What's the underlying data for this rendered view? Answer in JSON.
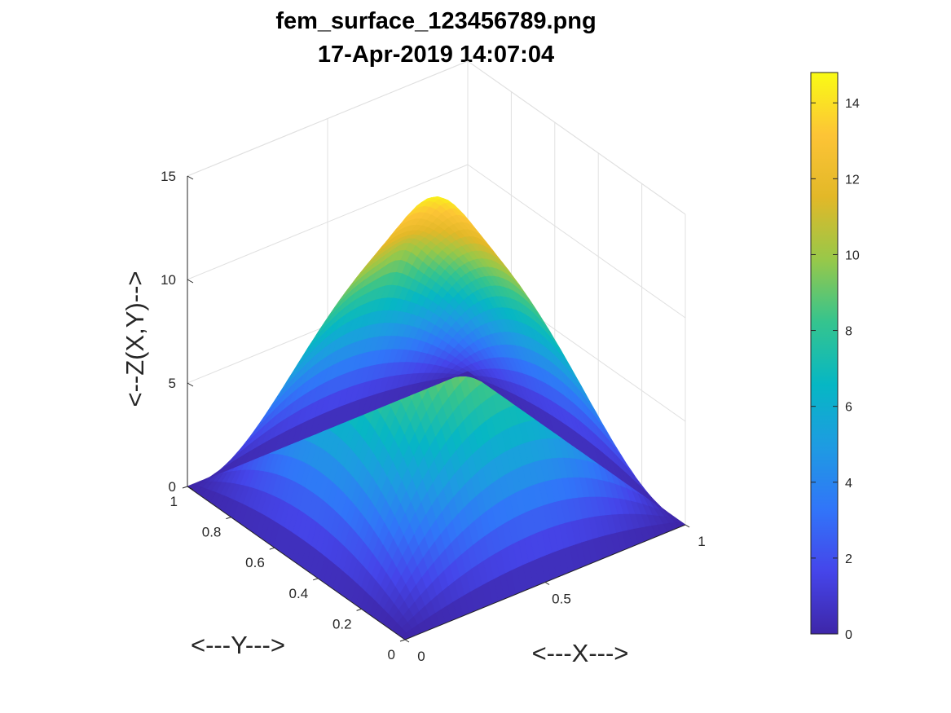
{
  "chart_data": {
    "type": "surface",
    "title": "fem_surface_123456789.png",
    "subtitle": "17-Apr-2019 14:07:04",
    "xlabel": "<---X--->",
    "ylabel": "<---Y--->",
    "zlabel": "<--Z(X,Y)-->",
    "xlim": [
      0,
      1
    ],
    "ylim": [
      0,
      1
    ],
    "zlim": [
      0,
      15
    ],
    "x_ticks": [
      {
        "value": 0,
        "label": "0"
      },
      {
        "value": 0.5,
        "label": "0.5"
      },
      {
        "value": 1,
        "label": "1"
      }
    ],
    "y_ticks": [
      {
        "value": 0,
        "label": "0"
      },
      {
        "value": 0.2,
        "label": "0.2"
      },
      {
        "value": 0.4,
        "label": "0.4"
      },
      {
        "value": 0.6,
        "label": "0.6"
      },
      {
        "value": 0.8,
        "label": "0.8"
      },
      {
        "value": 1,
        "label": "1"
      }
    ],
    "z_ticks": [
      {
        "value": 0,
        "label": "0"
      },
      {
        "value": 5,
        "label": "5"
      },
      {
        "value": 10,
        "label": "10"
      },
      {
        "value": 15,
        "label": "15"
      }
    ],
    "grid": true,
    "colormap": "parula",
    "colormap_stops": [
      "#3e26a8",
      "#4545ea",
      "#3175f9",
      "#1e9be2",
      "#06b7c4",
      "#35c48e",
      "#98c849",
      "#e2b828",
      "#fdc436",
      "#f9fb15"
    ],
    "colorbar": {
      "placement": "right",
      "range": [
        0,
        14.8
      ],
      "ticks": [
        {
          "value": 0,
          "label": "0"
        },
        {
          "value": 2,
          "label": "2"
        },
        {
          "value": 4,
          "label": "4"
        },
        {
          "value": 6,
          "label": "6"
        },
        {
          "value": 8,
          "label": "8"
        },
        {
          "value": 10,
          "label": "10"
        },
        {
          "value": 12,
          "label": "12"
        },
        {
          "value": 14,
          "label": "14"
        }
      ]
    },
    "surface_peak": {
      "x": 0.5,
      "y": 0.5,
      "z": 14.8
    }
  }
}
